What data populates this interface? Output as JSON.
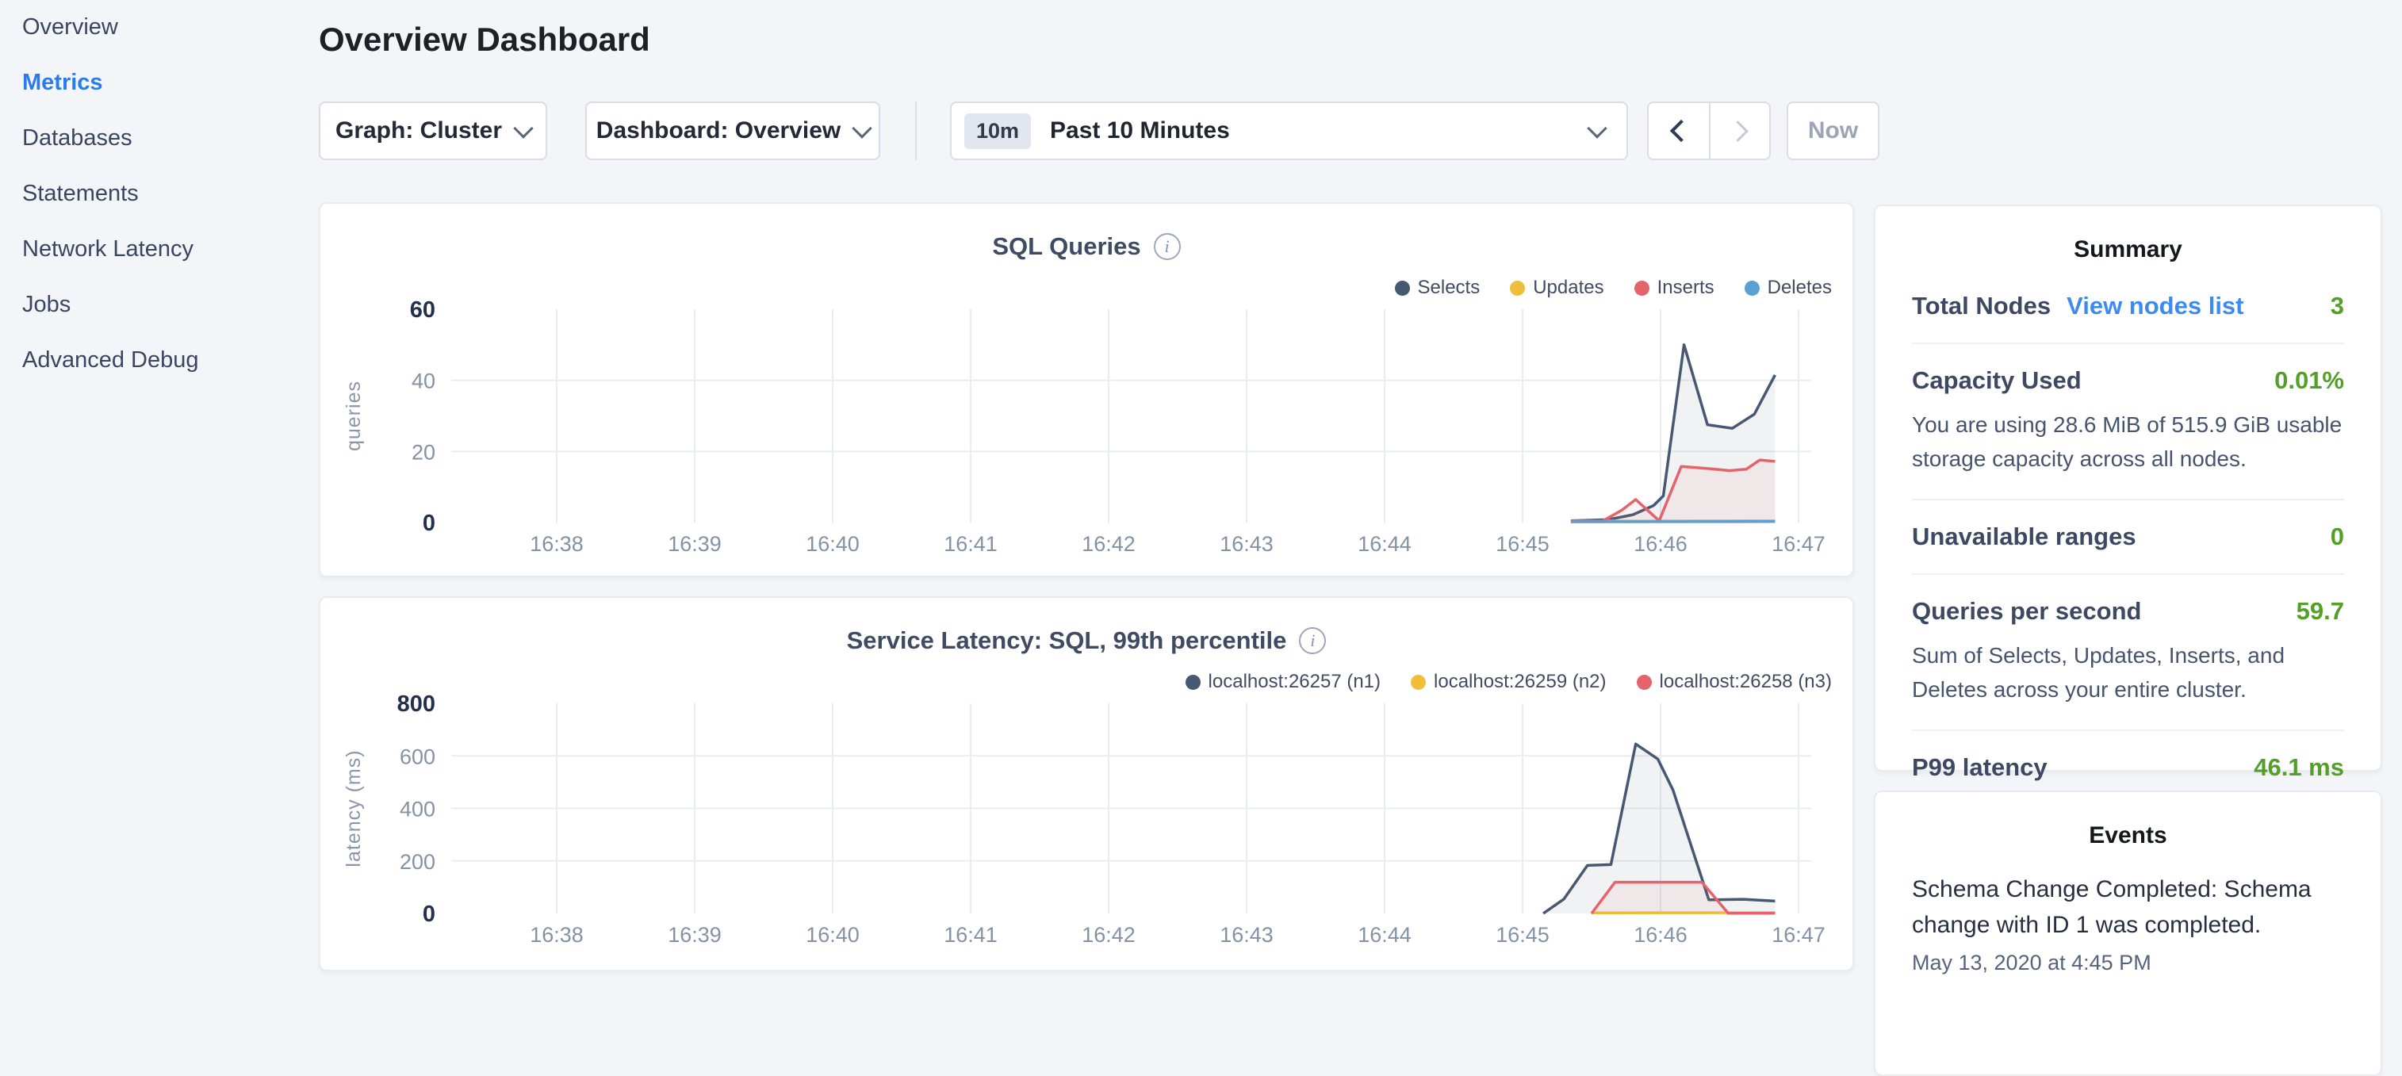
{
  "sidebar": {
    "items": [
      {
        "label": "Overview",
        "active": false
      },
      {
        "label": "Metrics",
        "active": true
      },
      {
        "label": "Databases",
        "active": false
      },
      {
        "label": "Statements",
        "active": false
      },
      {
        "label": "Network Latency",
        "active": false
      },
      {
        "label": "Jobs",
        "active": false
      },
      {
        "label": "Advanced Debug",
        "active": false
      }
    ]
  },
  "header": {
    "title": "Overview Dashboard"
  },
  "controls": {
    "graph_dropdown": {
      "label": "Graph: Cluster"
    },
    "dashboard_dropdown": {
      "label": "Dashboard: Overview"
    },
    "time_window": {
      "badge": "10m",
      "label": "Past 10 Minutes"
    },
    "now_button": "Now"
  },
  "colors": {
    "active_nav_blue": "#2b7ce9",
    "link_blue": "#3d8bf2",
    "value_green": "#549f27",
    "selects_navy": "#475872",
    "updates_yellow": "#efbe3b",
    "inserts_red": "#e5646b",
    "deletes_blue": "#5b9fd3"
  },
  "chart_data": [
    {
      "type": "line",
      "title": "SQL Queries",
      "ylabel": "queries",
      "ylim": [
        0,
        60
      ],
      "yticks": [
        0,
        20,
        40,
        60
      ],
      "xticks": [
        "16:38",
        "16:39",
        "16:40",
        "16:41",
        "16:42",
        "16:43",
        "16:44",
        "16:45",
        "16:46",
        "16:47"
      ],
      "x_unit": "minutes since 16:38",
      "grid": true,
      "legend_position": "top-right",
      "series": [
        {
          "name": "Selects",
          "color": "#475872",
          "points": [
            [
              7.35,
              0.5
            ],
            [
              7.62,
              0.8
            ],
            [
              7.8,
              2.2
            ],
            [
              7.95,
              4.8
            ],
            [
              8.02,
              7.5
            ],
            [
              8.17,
              50
            ],
            [
              8.34,
              27.5
            ],
            [
              8.52,
              26.5
            ],
            [
              8.68,
              30.5
            ],
            [
              8.83,
              41.5
            ]
          ]
        },
        {
          "name": "Updates",
          "color": "#efbe3b",
          "points": [
            [
              7.35,
              0.4
            ],
            [
              8.83,
              0.5
            ]
          ]
        },
        {
          "name": "Inserts",
          "color": "#e5646b",
          "points": [
            [
              7.35,
              0.3
            ],
            [
              7.58,
              0.4
            ],
            [
              7.72,
              3.5
            ],
            [
              7.82,
              6.5
            ],
            [
              7.99,
              0.5
            ],
            [
              8.15,
              15.8
            ],
            [
              8.34,
              15.2
            ],
            [
              8.5,
              14.6
            ],
            [
              8.62,
              15.0
            ],
            [
              8.72,
              17.6
            ],
            [
              8.83,
              17.2
            ]
          ]
        },
        {
          "name": "Deletes",
          "color": "#5b9fd3",
          "points": [
            [
              7.35,
              0.2
            ],
            [
              8.83,
              0.3
            ]
          ]
        }
      ]
    },
    {
      "type": "line",
      "title": "Service Latency: SQL, 99th percentile",
      "ylabel": "latency (ms)",
      "ylim": [
        0,
        800
      ],
      "yticks": [
        0,
        200,
        400,
        600,
        800
      ],
      "xticks": [
        "16:38",
        "16:39",
        "16:40",
        "16:41",
        "16:42",
        "16:43",
        "16:44",
        "16:45",
        "16:46",
        "16:47"
      ],
      "x_unit": "minutes since 16:38",
      "grid": true,
      "legend_position": "top-right",
      "series": [
        {
          "name": "localhost:26257 (n1)",
          "color": "#475872",
          "points": [
            [
              7.15,
              0
            ],
            [
              7.3,
              55
            ],
            [
              7.47,
              183
            ],
            [
              7.64,
              186
            ],
            [
              7.82,
              645
            ],
            [
              7.98,
              588
            ],
            [
              8.09,
              470
            ],
            [
              8.35,
              52
            ],
            [
              8.6,
              54
            ],
            [
              8.83,
              47
            ]
          ]
        },
        {
          "name": "localhost:26259 (n2)",
          "color": "#efbe3b",
          "points": [
            [
              7.5,
              2
            ],
            [
              8.83,
              3
            ]
          ]
        },
        {
          "name": "localhost:26258 (n3)",
          "color": "#e5646b",
          "points": [
            [
              7.5,
              0
            ],
            [
              7.67,
              119
            ],
            [
              8.3,
              119
            ],
            [
              8.49,
              1
            ],
            [
              8.83,
              1
            ]
          ]
        }
      ]
    }
  ],
  "summary": {
    "title": "Summary",
    "rows": [
      {
        "label": "Total Nodes",
        "link": "View nodes list",
        "value": "3"
      },
      {
        "label": "Capacity Used",
        "value": "0.01%",
        "description": "You are using 28.6 MiB of 515.9 GiB usable storage capacity across all nodes."
      },
      {
        "label": "Unavailable ranges",
        "value": "0"
      },
      {
        "label": "Queries per second",
        "value": "59.7",
        "description": "Sum of Selects, Updates, Inserts, and Deletes across your entire cluster."
      },
      {
        "label": "P99 latency",
        "value": "46.1 ms"
      }
    ]
  },
  "events": {
    "title": "Events",
    "items": [
      {
        "text": "Schema Change Completed: Schema change with ID 1 was completed.",
        "timestamp": "May 13, 2020 at 4:45 PM"
      }
    ]
  }
}
